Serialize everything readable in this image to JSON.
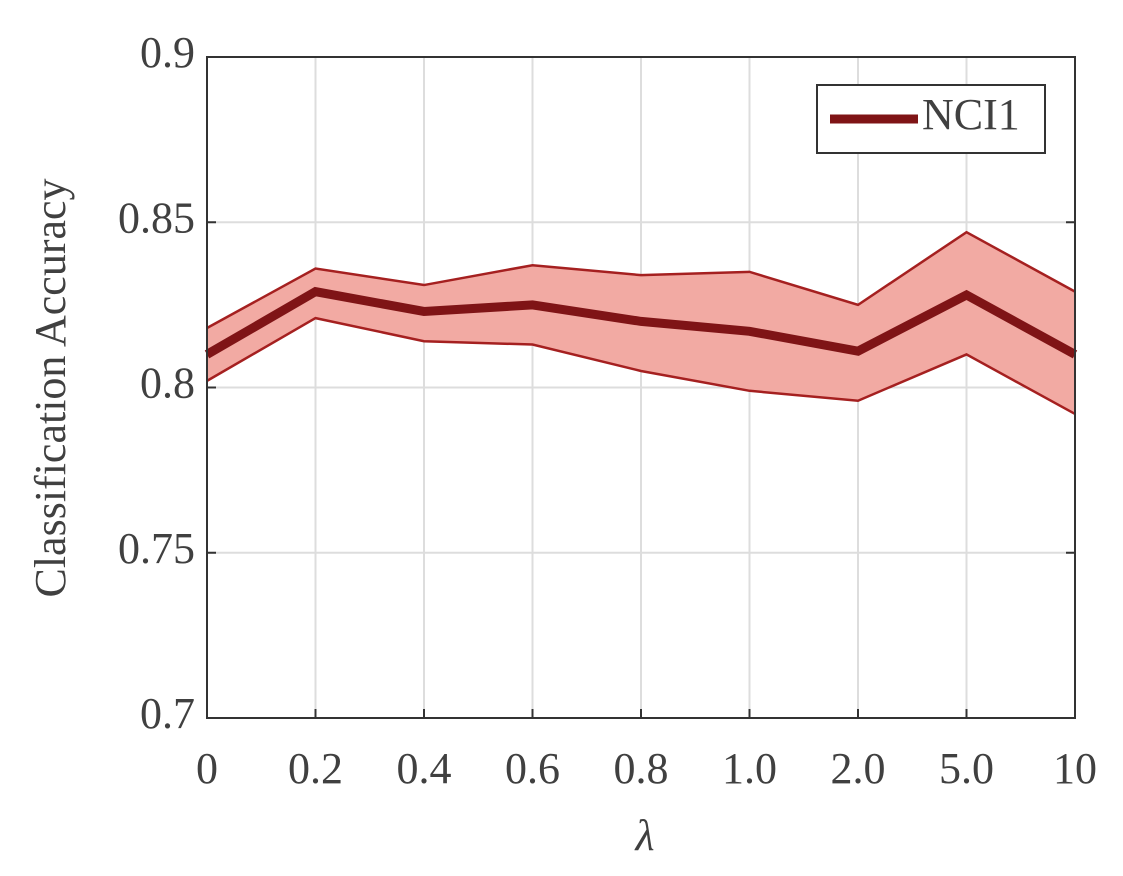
{
  "chart_data": {
    "type": "line",
    "x_label": "λ",
    "y_label": "Classification Accuracy",
    "categories": [
      "0",
      "0.2",
      "0.4",
      "0.6",
      "0.8",
      "1.0",
      "2.0",
      "5.0",
      "10"
    ],
    "series": [
      {
        "name": "NCI1",
        "color": "#7f1416",
        "band_color": "#f2aaa3",
        "band_edge_color": "#a52020",
        "values": [
          0.81,
          0.829,
          0.823,
          0.825,
          0.82,
          0.817,
          0.811,
          0.828,
          0.81
        ],
        "upper": [
          0.818,
          0.836,
          0.831,
          0.837,
          0.834,
          0.835,
          0.825,
          0.847,
          0.829
        ],
        "lower": [
          0.802,
          0.821,
          0.814,
          0.813,
          0.805,
          0.799,
          0.796,
          0.81,
          0.792
        ]
      }
    ],
    "ylim": [
      0.7,
      0.9
    ],
    "yticks": [
      0.7,
      0.75,
      0.8,
      0.85,
      0.9
    ],
    "grid": true,
    "legend": "upper right"
  }
}
